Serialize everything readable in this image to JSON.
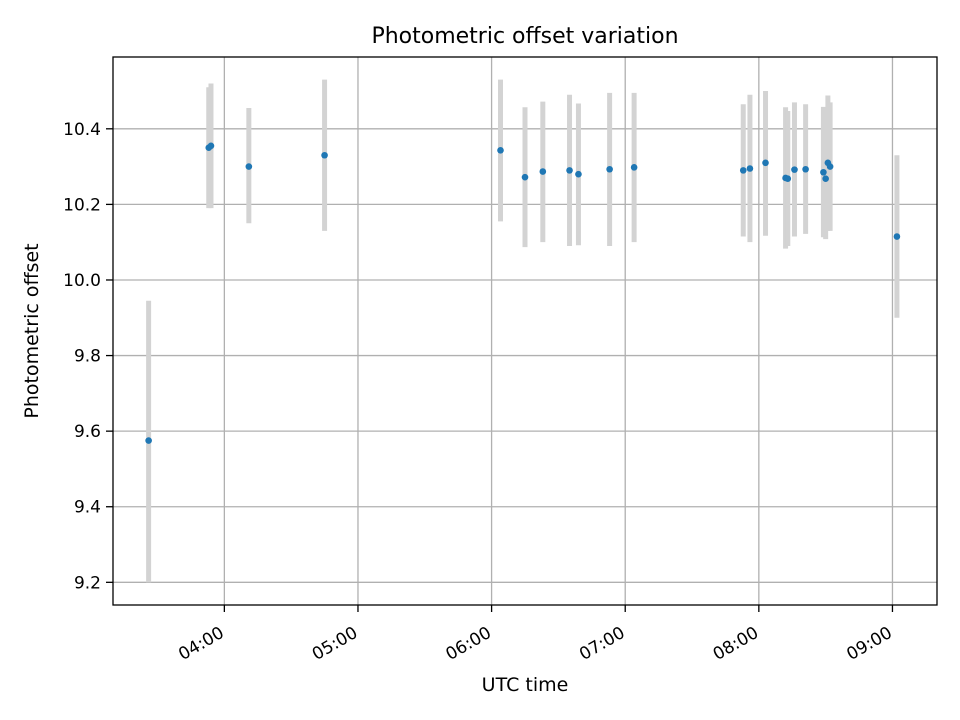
{
  "chart_data": {
    "type": "scatter",
    "title": "Photometric offset variation",
    "xlabel": "UTC time",
    "ylabel": "Photometric offset",
    "x_axis": {
      "type": "time",
      "range": [
        "03:10",
        "09:20"
      ],
      "ticks": [
        "04:00",
        "05:00",
        "06:00",
        "07:00",
        "08:00",
        "09:00"
      ]
    },
    "y_axis": {
      "range": [
        9.14,
        10.59
      ],
      "ticks": [
        "9.2",
        "9.4",
        "9.6",
        "9.8",
        "10.0",
        "10.2",
        "10.4"
      ]
    },
    "grid": true,
    "marker_color": "#1f77b4",
    "errorbar_color": "#d3d3d3",
    "points": [
      {
        "x": "03:26",
        "y": 9.575,
        "ylow": 9.2,
        "yhigh": 9.945
      },
      {
        "x": "03:53",
        "y": 10.35,
        "ylow": 10.19,
        "yhigh": 10.51
      },
      {
        "x": "03:54",
        "y": 10.355,
        "ylow": 10.19,
        "yhigh": 10.52
      },
      {
        "x": "04:11",
        "y": 10.3,
        "ylow": 10.15,
        "yhigh": 10.455
      },
      {
        "x": "04:45",
        "y": 10.33,
        "ylow": 10.13,
        "yhigh": 10.53
      },
      {
        "x": "06:04",
        "y": 10.343,
        "ylow": 10.155,
        "yhigh": 10.53
      },
      {
        "x": "06:15",
        "y": 10.272,
        "ylow": 10.087,
        "yhigh": 10.457
      },
      {
        "x": "06:23",
        "y": 10.287,
        "ylow": 10.1,
        "yhigh": 10.472
      },
      {
        "x": "06:35",
        "y": 10.29,
        "ylow": 10.09,
        "yhigh": 10.49
      },
      {
        "x": "06:39",
        "y": 10.28,
        "ylow": 10.092,
        "yhigh": 10.467
      },
      {
        "x": "06:53",
        "y": 10.293,
        "ylow": 10.09,
        "yhigh": 10.495
      },
      {
        "x": "07:04",
        "y": 10.298,
        "ylow": 10.1,
        "yhigh": 10.495
      },
      {
        "x": "07:53",
        "y": 10.29,
        "ylow": 10.115,
        "yhigh": 10.465
      },
      {
        "x": "07:56",
        "y": 10.295,
        "ylow": 10.1,
        "yhigh": 10.49
      },
      {
        "x": "08:03",
        "y": 10.31,
        "ylow": 10.117,
        "yhigh": 10.5
      },
      {
        "x": "08:12",
        "y": 10.27,
        "ylow": 10.083,
        "yhigh": 10.457
      },
      {
        "x": "08:13",
        "y": 10.268,
        "ylow": 10.09,
        "yhigh": 10.447
      },
      {
        "x": "08:16",
        "y": 10.292,
        "ylow": 10.115,
        "yhigh": 10.47
      },
      {
        "x": "08:21",
        "y": 10.293,
        "ylow": 10.122,
        "yhigh": 10.465
      },
      {
        "x": "08:29",
        "y": 10.285,
        "ylow": 10.113,
        "yhigh": 10.458
      },
      {
        "x": "08:30",
        "y": 10.268,
        "ylow": 10.108,
        "yhigh": 10.44
      },
      {
        "x": "08:31",
        "y": 10.31,
        "ylow": 10.13,
        "yhigh": 10.488
      },
      {
        "x": "08:32",
        "y": 10.3,
        "ylow": 10.13,
        "yhigh": 10.47
      },
      {
        "x": "09:02",
        "y": 10.115,
        "ylow": 9.9,
        "yhigh": 10.33
      }
    ]
  }
}
